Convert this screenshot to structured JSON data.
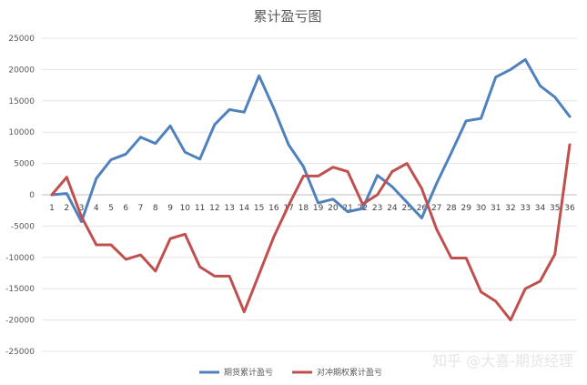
{
  "watermark": "知乎 @大喜-期货经理",
  "chart_data": {
    "type": "line",
    "title": "累计盈亏图",
    "xlabel": "",
    "ylabel": "",
    "ylim": [
      -25000,
      25000
    ],
    "yticks": [
      25000,
      20000,
      15000,
      10000,
      5000,
      0,
      -5000,
      -10000,
      -15000,
      -20000,
      -25000
    ],
    "grid": true,
    "legend_position": "bottom",
    "categories": [
      "1",
      "2",
      "3",
      "4",
      "5",
      "6",
      "7",
      "8",
      "9",
      "10",
      "11",
      "12",
      "13",
      "14",
      "15",
      "16",
      "17",
      "18",
      "19",
      "20",
      "21",
      "22",
      "23",
      "24",
      "25",
      "26",
      "27",
      "28",
      "29",
      "30",
      "31",
      "32",
      "33",
      "34",
      "35",
      "36"
    ],
    "series": [
      {
        "name": "期货累计盈亏",
        "color": "#4f81bd",
        "values": [
          0,
          200,
          -4300,
          2600,
          5600,
          6500,
          9200,
          8200,
          11000,
          6800,
          5700,
          11200,
          13600,
          13200,
          19000,
          13800,
          8000,
          4500,
          -1300,
          -700,
          -2700,
          -2200,
          3100,
          1300,
          -1200,
          -3700,
          1800,
          6700,
          11800,
          12200,
          18800,
          20000,
          21600,
          17400,
          15600,
          12500
        ]
      },
      {
        "name": "对冲期权累计盈亏",
        "color": "#c0504d",
        "values": [
          0,
          2800,
          -3500,
          -8000,
          -8000,
          -10300,
          -9600,
          -12200,
          -7000,
          -6300,
          -11500,
          -13000,
          -13000,
          -18700,
          -12700,
          -6700,
          -1700,
          3000,
          3000,
          4400,
          3700,
          -1500,
          0,
          3700,
          5000,
          1000,
          -5500,
          -10100,
          -10100,
          -15500,
          -17000,
          -20000,
          -15000,
          -13800,
          -9500,
          8000
        ]
      }
    ]
  }
}
